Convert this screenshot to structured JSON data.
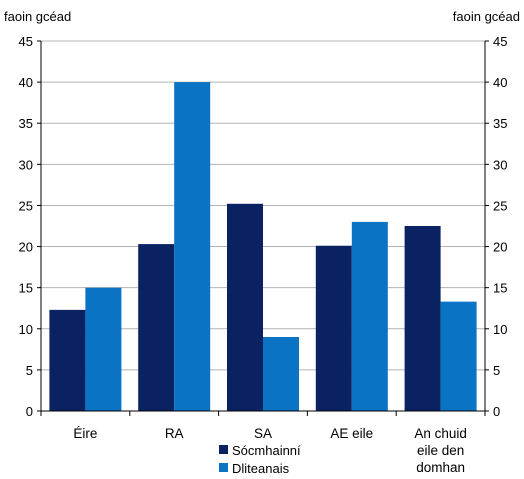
{
  "chart_data": {
    "type": "bar",
    "left_unit": "faoin gcéad",
    "right_unit": "faoin gcéad",
    "categories": [
      [
        "Éire"
      ],
      [
        "RA"
      ],
      [
        "SA"
      ],
      [
        "AE eile"
      ],
      [
        "An chuid",
        "eile den",
        "domhan"
      ]
    ],
    "series": [
      {
        "name": "Sócmhainní",
        "color": "#0b2262",
        "values": [
          12.3,
          20.3,
          25.2,
          20.1,
          22.5
        ]
      },
      {
        "name": "Dliteanais",
        "color": "#0a73c4",
        "values": [
          15.0,
          40.0,
          9.0,
          23.0,
          13.3
        ]
      }
    ],
    "ylim": [
      0,
      45
    ],
    "yticks": [
      0,
      5,
      10,
      15,
      20,
      25,
      30,
      35,
      40,
      45
    ],
    "grid": true,
    "legend": "bottom-center"
  }
}
